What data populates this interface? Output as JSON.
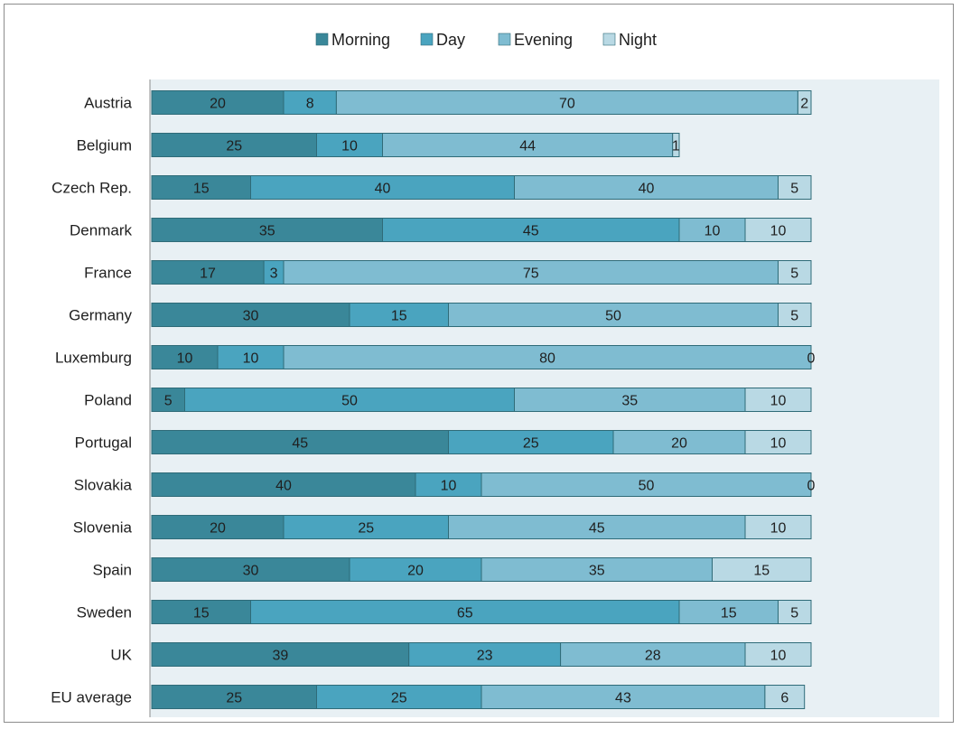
{
  "chart_data": {
    "type": "bar",
    "orientation": "horizontal",
    "stacked": true,
    "categories": [
      "Austria",
      "Belgium",
      "Czech Rep.",
      "Denmark",
      "France",
      "Germany",
      "Luxemburg",
      "Poland",
      "Portugal",
      "Slovakia",
      "Slovenia",
      "Spain",
      "Sweden",
      "UK",
      "EU average"
    ],
    "series": [
      {
        "name": "Morning",
        "color": "#3a8799",
        "values": [
          20,
          25,
          15,
          35,
          17,
          30,
          10,
          5,
          45,
          40,
          20,
          30,
          15,
          39,
          25
        ]
      },
      {
        "name": "Day",
        "color": "#4aa4bf",
        "values": [
          8,
          10,
          40,
          45,
          3,
          15,
          10,
          50,
          25,
          10,
          25,
          20,
          65,
          23,
          25
        ]
      },
      {
        "name": "Evening",
        "color": "#7fbcd1",
        "values": [
          70,
          44,
          40,
          10,
          75,
          50,
          80,
          35,
          20,
          50,
          45,
          35,
          15,
          28,
          43
        ]
      },
      {
        "name": "Night",
        "color": "#b9d9e4",
        "values": [
          2,
          1,
          5,
          10,
          5,
          5,
          0,
          10,
          10,
          0,
          10,
          15,
          5,
          10,
          6
        ]
      }
    ],
    "title": "",
    "xlabel": "",
    "ylabel": "",
    "xlim": [
      0,
      100
    ],
    "legend_position": "top",
    "grid": false,
    "plot_background": "#e8f0f4"
  }
}
